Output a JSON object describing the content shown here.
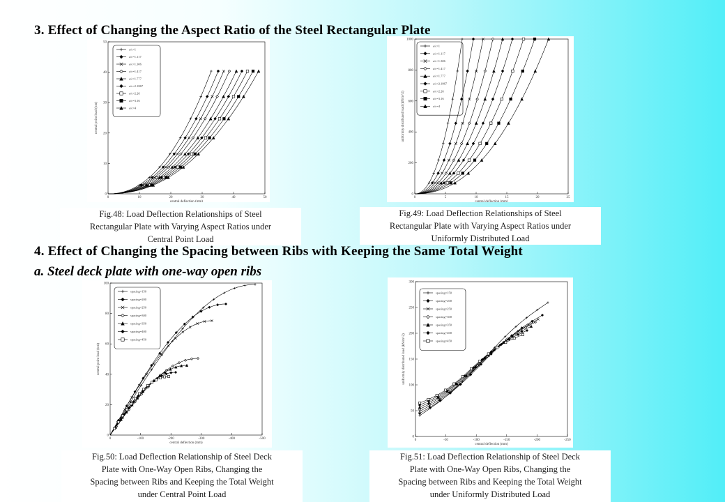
{
  "section3": {
    "title": "3. Effect of Changing the Aspect Ratio of the Steel Rectangular Plate"
  },
  "section4": {
    "title": "4. Effect of Changing the Spacing between Ribs with Keeping the Same Total Weight",
    "subtitle": "a. Steel deck plate with one-way open ribs"
  },
  "figures": [
    {
      "id": "fig48",
      "caption": [
        "Fig.48: Load Deflection Relationships of Steel",
        "Rectangular Plate with Varying Aspect Ratios under",
        "Central Point Load"
      ],
      "xlabel": "central deflection (mm)",
      "ylabel": "central point load (ton)",
      "xticks": [
        "0",
        "10",
        "20",
        "30",
        "40",
        "50"
      ],
      "yticks": [
        "0",
        "10",
        "20",
        "30",
        "40",
        "50"
      ],
      "legend": [
        "a/c=1",
        "a/c=1.117",
        "a/c=1.306",
        "a/c=1.417",
        "a/c=1.777",
        "a/c=2.1867",
        "a/c=2.26",
        "a/c=3.16",
        "a/c=4"
      ]
    },
    {
      "id": "fig49",
      "caption": [
        "Fig.49: Load Deflection Relationships of Steel",
        "Rectangular Plate with Varying Aspect Ratios under",
        "Uniformly Distributed Load"
      ],
      "xlabel": "central deflection (mm)",
      "ylabel": "uniformly distributed load (kN/m^2)",
      "xticks": [
        "0",
        "5",
        "10",
        "15",
        "20",
        "25"
      ],
      "yticks": [
        "0",
        "200",
        "400",
        "600",
        "800",
        "1000"
      ],
      "legend": [
        "a/c=1",
        "a/c=1.117",
        "a/c=1.306",
        "a/c=1.417",
        "a/c=1.777",
        "a/c=2.1867",
        "a/c=2.26",
        "a/c=3.16",
        "a/c=4"
      ]
    },
    {
      "id": "fig50",
      "caption": [
        "Fig.50: Load Deflection Relationship of Steel Deck",
        "Plate with One-Way Open Ribs, Changing the",
        "Spacing between Ribs and Keeping the Total Weight",
        "under Central Point Load"
      ],
      "xlabel": "central deflection (mm)",
      "ylabel": "central point load (ton)",
      "xticks": [
        "0",
        "-100",
        "-200",
        "-300",
        "-400",
        "-500"
      ],
      "yticks": [
        "0",
        "20",
        "40",
        "60",
        "80",
        "100"
      ],
      "legend": [
        "spacing=150",
        "spacing=200",
        "spacing=250",
        "spacing=300",
        "spacing=350",
        "spacing=400",
        "spacing=450"
      ]
    },
    {
      "id": "fig51",
      "caption": [
        "Fig.51: Load Deflection Relationship of Steel Deck",
        "Plate with One-Way Open Ribs, Changing the",
        "Spacing between Ribs and Keeping the Total Weight",
        "under Uniformly Distributed Load"
      ],
      "xlabel": "central deflection (mm)",
      "ylabel": "uniformly distributed load (kN/m^2)",
      "xticks": [
        "0",
        "-50",
        "-100",
        "-150",
        "-200",
        "-250"
      ],
      "yticks": [
        "0",
        "50",
        "100",
        "150",
        "200",
        "250",
        "300"
      ],
      "legend": [
        "spacing=150",
        "spacing=200",
        "spacing=250",
        "spacing=300",
        "spacing=350",
        "spacing=400",
        "spacing=450"
      ]
    }
  ]
}
